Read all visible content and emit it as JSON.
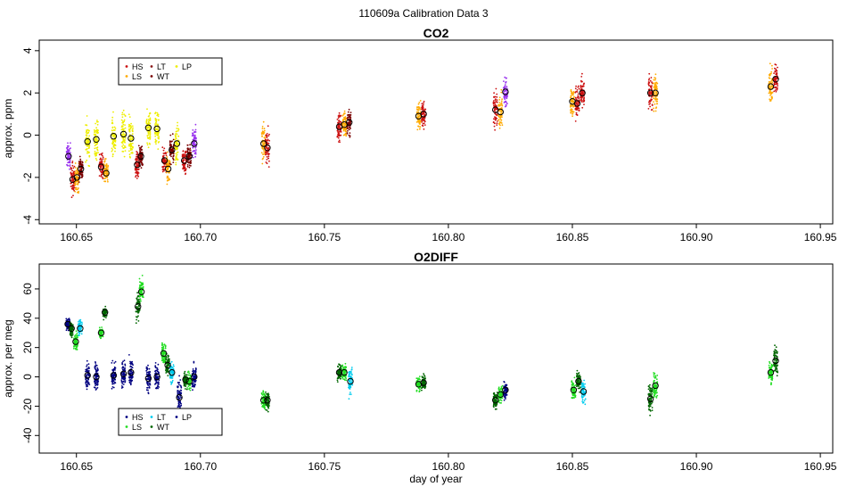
{
  "figure": {
    "title": "110609a   Calibration Data 3",
    "xlabel": "day of year"
  },
  "colors": {
    "HS": "#cc1111",
    "LS": "#ffaa00",
    "LT": "#8b1a1a",
    "WT": "#7a0000",
    "LP": "#eeee00",
    "purple": "#9933ee",
    "blue": "#000080",
    "green": "#22dd22",
    "darkgreen": "#006600",
    "cyan": "#00ccee"
  },
  "chart_data": [
    {
      "type": "scatter",
      "title": "CO2",
      "ylabel": "approx. ppm",
      "xlim": [
        160.635,
        160.955
      ],
      "ylim": [
        -4.2,
        4.5
      ],
      "xticks": [
        "160.65",
        "160.70",
        "160.75",
        "160.80",
        "160.85",
        "160.90",
        "160.95"
      ],
      "xtick_values": [
        160.65,
        160.7,
        160.75,
        160.8,
        160.85,
        160.9,
        160.95
      ],
      "yticks": [
        "-4",
        "-2",
        "0",
        "2",
        "4"
      ],
      "ytick_values": [
        -4,
        -2,
        0,
        2,
        4
      ],
      "legend": {
        "position": "top-left",
        "entries": [
          {
            "label": "HS",
            "color": "#cc1111"
          },
          {
            "label": "LS",
            "color": "#ffaa00"
          },
          {
            "label": "LT",
            "color": "#8b1a1a"
          },
          {
            "label": "WT",
            "color": "#7a0000"
          },
          {
            "label": "LP",
            "color": "#eeee00"
          }
        ]
      },
      "clusters": [
        {
          "x": 160.6468,
          "y": -1.0,
          "spread": 0.6,
          "color": "#9933ee"
        },
        {
          "x": 160.6485,
          "y": -2.1,
          "spread": 0.8,
          "color": "#cc1111"
        },
        {
          "x": 160.6502,
          "y": -2.0,
          "spread": 0.7,
          "color": "#ffaa00"
        },
        {
          "x": 160.6518,
          "y": -1.6,
          "spread": 0.6,
          "color": "#7a0000"
        },
        {
          "x": 160.6545,
          "y": -0.3,
          "spread": 1.0,
          "color": "#eeee00"
        },
        {
          "x": 160.658,
          "y": -0.2,
          "spread": 1.0,
          "color": "#eeee00"
        },
        {
          "x": 160.66,
          "y": -1.5,
          "spread": 0.6,
          "color": "#cc1111"
        },
        {
          "x": 160.662,
          "y": -1.8,
          "spread": 0.6,
          "color": "#ffaa00"
        },
        {
          "x": 160.665,
          "y": -0.05,
          "spread": 1.0,
          "color": "#eeee00"
        },
        {
          "x": 160.669,
          "y": 0.05,
          "spread": 1.0,
          "color": "#eeee00"
        },
        {
          "x": 160.672,
          "y": -0.15,
          "spread": 1.0,
          "color": "#eeee00"
        },
        {
          "x": 160.6745,
          "y": -1.4,
          "spread": 0.6,
          "color": "#cc1111"
        },
        {
          "x": 160.676,
          "y": -1.0,
          "spread": 0.6,
          "color": "#7a0000"
        },
        {
          "x": 160.679,
          "y": 0.35,
          "spread": 1.0,
          "color": "#eeee00"
        },
        {
          "x": 160.6825,
          "y": 0.3,
          "spread": 1.0,
          "color": "#eeee00"
        },
        {
          "x": 160.6855,
          "y": -1.2,
          "spread": 0.6,
          "color": "#cc1111"
        },
        {
          "x": 160.687,
          "y": -1.6,
          "spread": 0.6,
          "color": "#ffaa00"
        },
        {
          "x": 160.6885,
          "y": -0.7,
          "spread": 0.6,
          "color": "#7a0000"
        },
        {
          "x": 160.6905,
          "y": -0.4,
          "spread": 0.9,
          "color": "#eeee00"
        },
        {
          "x": 160.6935,
          "y": -1.2,
          "spread": 0.6,
          "color": "#cc1111"
        },
        {
          "x": 160.6955,
          "y": -1.0,
          "spread": 0.6,
          "color": "#7a0000"
        },
        {
          "x": 160.6975,
          "y": -0.4,
          "spread": 0.8,
          "color": "#9933ee"
        },
        {
          "x": 160.7255,
          "y": -0.4,
          "spread": 0.8,
          "color": "#ffaa00"
        },
        {
          "x": 160.727,
          "y": -0.6,
          "spread": 0.8,
          "color": "#cc1111"
        },
        {
          "x": 160.756,
          "y": 0.4,
          "spread": 0.7,
          "color": "#cc1111"
        },
        {
          "x": 160.758,
          "y": 0.5,
          "spread": 0.7,
          "color": "#ffaa00"
        },
        {
          "x": 160.76,
          "y": 0.6,
          "spread": 0.6,
          "color": "#7a0000"
        },
        {
          "x": 160.788,
          "y": 0.9,
          "spread": 0.7,
          "color": "#ffaa00"
        },
        {
          "x": 160.79,
          "y": 1.0,
          "spread": 0.7,
          "color": "#cc1111"
        },
        {
          "x": 160.819,
          "y": 1.2,
          "spread": 0.8,
          "color": "#cc1111"
        },
        {
          "x": 160.821,
          "y": 1.1,
          "spread": 0.8,
          "color": "#ffaa00"
        },
        {
          "x": 160.823,
          "y": 2.05,
          "spread": 0.7,
          "color": "#9933ee"
        },
        {
          "x": 160.85,
          "y": 1.6,
          "spread": 0.8,
          "color": "#ffaa00"
        },
        {
          "x": 160.852,
          "y": 1.5,
          "spread": 0.8,
          "color": "#cc1111"
        },
        {
          "x": 160.854,
          "y": 2.0,
          "spread": 0.8,
          "color": "#cc1111"
        },
        {
          "x": 160.8815,
          "y": 2.0,
          "spread": 0.8,
          "color": "#cc1111"
        },
        {
          "x": 160.8835,
          "y": 2.0,
          "spread": 0.9,
          "color": "#ffaa00"
        },
        {
          "x": 160.93,
          "y": 2.3,
          "spread": 0.8,
          "color": "#ffaa00"
        },
        {
          "x": 160.932,
          "y": 2.65,
          "spread": 0.7,
          "color": "#cc1111"
        }
      ]
    },
    {
      "type": "scatter",
      "title": "O2DIFF",
      "ylabel": "approx. per meg",
      "xlim": [
        160.635,
        160.955
      ],
      "ylim": [
        -52,
        77
      ],
      "xticks": [
        "160.65",
        "160.70",
        "160.75",
        "160.80",
        "160.85",
        "160.90",
        "160.95"
      ],
      "xtick_values": [
        160.65,
        160.7,
        160.75,
        160.8,
        160.85,
        160.9,
        160.95
      ],
      "yticks": [
        "-40",
        "-20",
        "0",
        "20",
        "40",
        "60"
      ],
      "ytick_values": [
        -40,
        -20,
        0,
        20,
        40,
        60
      ],
      "legend": {
        "position": "bottom-left",
        "entries": [
          {
            "label": "HS",
            "color": "#000080"
          },
          {
            "label": "LS",
            "color": "#22dd22"
          },
          {
            "label": "LT",
            "color": "#00ccee"
          },
          {
            "label": "WT",
            "color": "#006600"
          },
          {
            "label": "LP",
            "color": "#000080"
          }
        ]
      },
      "clusters": [
        {
          "x": 160.6465,
          "y": 36,
          "spread": 4,
          "color": "#000080"
        },
        {
          "x": 160.648,
          "y": 33,
          "spread": 5,
          "color": "#006600"
        },
        {
          "x": 160.6497,
          "y": 24,
          "spread": 7,
          "color": "#22dd22"
        },
        {
          "x": 160.6515,
          "y": 33,
          "spread": 6,
          "color": "#00ccee"
        },
        {
          "x": 160.6545,
          "y": 1,
          "spread": 9,
          "color": "#000080"
        },
        {
          "x": 160.658,
          "y": 0,
          "spread": 9,
          "color": "#000080"
        },
        {
          "x": 160.66,
          "y": 30,
          "spread": 4,
          "color": "#22dd22"
        },
        {
          "x": 160.6615,
          "y": 44,
          "spread": 4,
          "color": "#006600"
        },
        {
          "x": 160.665,
          "y": 1,
          "spread": 9,
          "color": "#000080"
        },
        {
          "x": 160.669,
          "y": 2,
          "spread": 9,
          "color": "#000080"
        },
        {
          "x": 160.672,
          "y": 3,
          "spread": 9,
          "color": "#000080"
        },
        {
          "x": 160.6748,
          "y": 48,
          "spread": 10,
          "color": "#006600"
        },
        {
          "x": 160.6762,
          "y": 58,
          "spread": 8,
          "color": "#22dd22"
        },
        {
          "x": 160.679,
          "y": -1,
          "spread": 9,
          "color": "#000080"
        },
        {
          "x": 160.6825,
          "y": 0,
          "spread": 9,
          "color": "#000080"
        },
        {
          "x": 160.6852,
          "y": 16,
          "spread": 8,
          "color": "#22dd22"
        },
        {
          "x": 160.6868,
          "y": 8,
          "spread": 8,
          "color": "#006600"
        },
        {
          "x": 160.6885,
          "y": 3,
          "spread": 7,
          "color": "#00ccee"
        },
        {
          "x": 160.6915,
          "y": -14,
          "spread": 14,
          "color": "#000080"
        },
        {
          "x": 160.694,
          "y": -2,
          "spread": 6,
          "color": "#006600"
        },
        {
          "x": 160.6955,
          "y": -3,
          "spread": 6,
          "color": "#22dd22"
        },
        {
          "x": 160.6975,
          "y": 0,
          "spread": 8,
          "color": "#000080"
        },
        {
          "x": 160.7255,
          "y": -16,
          "spread": 7,
          "color": "#22dd22"
        },
        {
          "x": 160.727,
          "y": -16,
          "spread": 7,
          "color": "#006600"
        },
        {
          "x": 160.756,
          "y": 3,
          "spread": 6,
          "color": "#006600"
        },
        {
          "x": 160.758,
          "y": 3,
          "spread": 6,
          "color": "#22dd22"
        },
        {
          "x": 160.7605,
          "y": -3,
          "spread": 10,
          "color": "#00ccee"
        },
        {
          "x": 160.788,
          "y": -5,
          "spread": 5,
          "color": "#22dd22"
        },
        {
          "x": 160.79,
          "y": -4,
          "spread": 5,
          "color": "#006600"
        },
        {
          "x": 160.819,
          "y": -16,
          "spread": 6,
          "color": "#006600"
        },
        {
          "x": 160.821,
          "y": -12,
          "spread": 6,
          "color": "#22dd22"
        },
        {
          "x": 160.823,
          "y": -9,
          "spread": 6,
          "color": "#000080"
        },
        {
          "x": 160.8505,
          "y": -9,
          "spread": 8,
          "color": "#22dd22"
        },
        {
          "x": 160.8525,
          "y": -3,
          "spread": 7,
          "color": "#006600"
        },
        {
          "x": 160.8545,
          "y": -10,
          "spread": 8,
          "color": "#00ccee"
        },
        {
          "x": 160.8815,
          "y": -15,
          "spread": 10,
          "color": "#006600"
        },
        {
          "x": 160.8835,
          "y": -6,
          "spread": 10,
          "color": "#22dd22"
        },
        {
          "x": 160.93,
          "y": 3,
          "spread": 7,
          "color": "#22dd22"
        },
        {
          "x": 160.932,
          "y": 11,
          "spread": 10,
          "color": "#006600"
        }
      ]
    }
  ]
}
